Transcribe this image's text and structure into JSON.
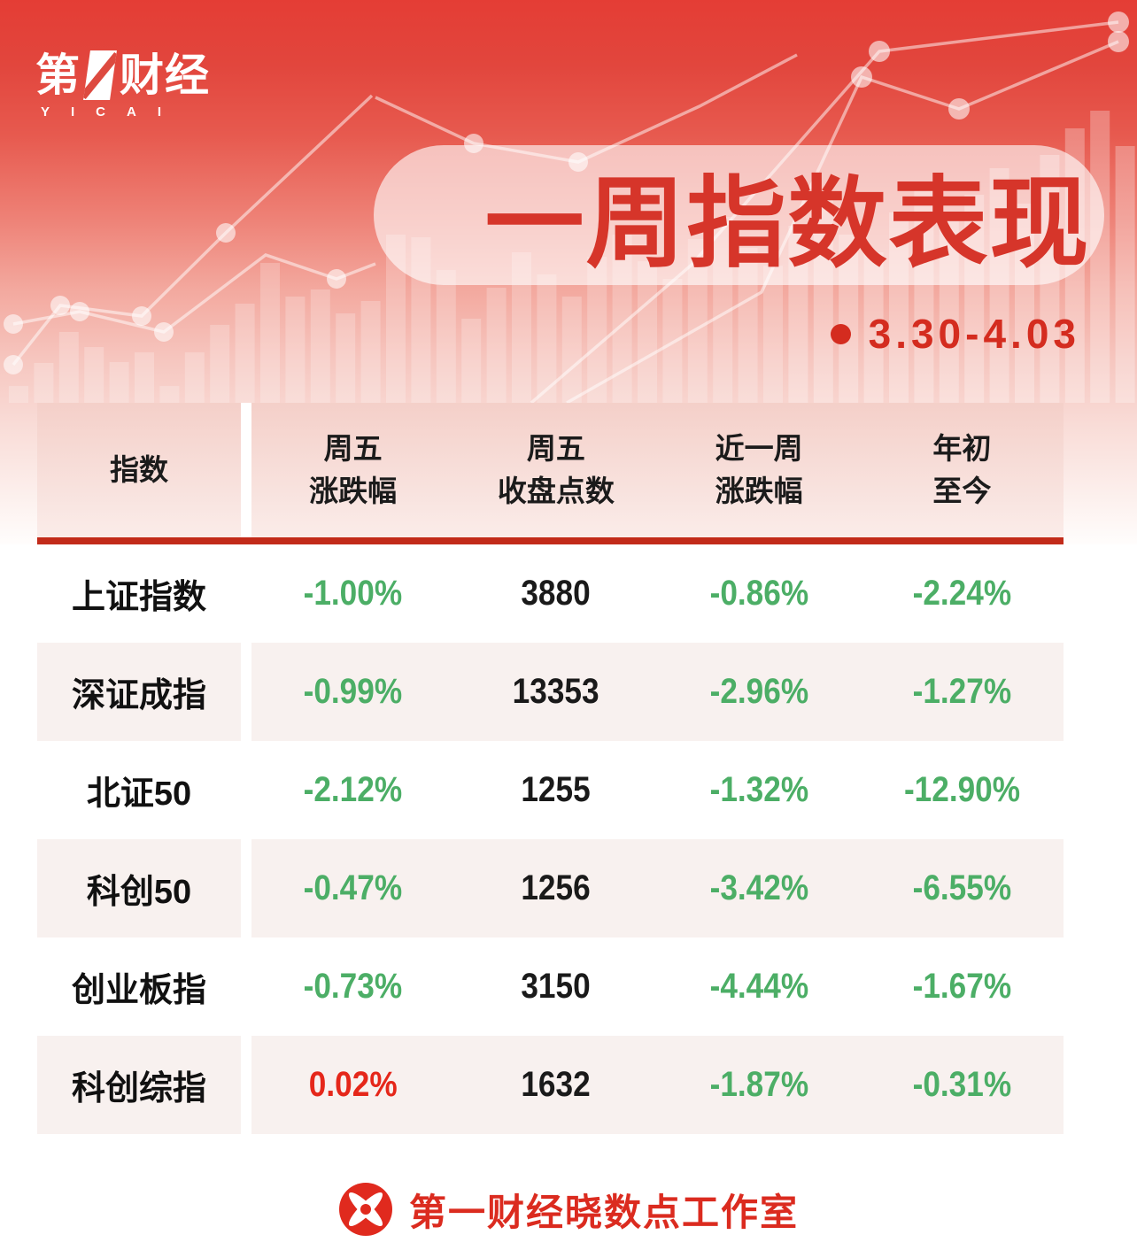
{
  "brand": {
    "logo_cn_left": "第",
    "logo_number": "1",
    "logo_cn_right": "财经",
    "logo_en": "YICAI"
  },
  "title": {
    "text": "一周指数表现",
    "date_range": "3.30-4.03"
  },
  "table": {
    "headers": {
      "index": "指数",
      "friday_change": "周五\n涨跌幅",
      "friday_close": "周五\n收盘点数",
      "week_change": "近一周\n涨跌幅",
      "ytd": "年初\n至今"
    },
    "rows": [
      {
        "name": "上证指数",
        "friday_change": {
          "text": "-1.00%",
          "tone": "down"
        },
        "friday_close": {
          "text": "3880",
          "tone": "neutral"
        },
        "week_change": {
          "text": "-0.86%",
          "tone": "down"
        },
        "ytd": {
          "text": "-2.24%",
          "tone": "down"
        }
      },
      {
        "name": "深证成指",
        "friday_change": {
          "text": "-0.99%",
          "tone": "down"
        },
        "friday_close": {
          "text": "13353",
          "tone": "neutral"
        },
        "week_change": {
          "text": "-2.96%",
          "tone": "down"
        },
        "ytd": {
          "text": "-1.27%",
          "tone": "down"
        }
      },
      {
        "name": "北证50",
        "friday_change": {
          "text": "-2.12%",
          "tone": "down"
        },
        "friday_close": {
          "text": "1255",
          "tone": "neutral"
        },
        "week_change": {
          "text": "-1.32%",
          "tone": "down"
        },
        "ytd": {
          "text": "-12.90%",
          "tone": "down"
        }
      },
      {
        "name": "科创50",
        "friday_change": {
          "text": "-0.47%",
          "tone": "down"
        },
        "friday_close": {
          "text": "1256",
          "tone": "neutral"
        },
        "week_change": {
          "text": "-3.42%",
          "tone": "down"
        },
        "ytd": {
          "text": "-6.55%",
          "tone": "down"
        }
      },
      {
        "name": "创业板指",
        "friday_change": {
          "text": "-0.73%",
          "tone": "down"
        },
        "friday_close": {
          "text": "3150",
          "tone": "neutral"
        },
        "week_change": {
          "text": "-4.44%",
          "tone": "down"
        },
        "ytd": {
          "text": "-1.67%",
          "tone": "down"
        }
      },
      {
        "name": "科创综指",
        "friday_change": {
          "text": "0.02%",
          "tone": "up"
        },
        "friday_close": {
          "text": "1632",
          "tone": "neutral"
        },
        "week_change": {
          "text": "-1.87%",
          "tone": "down"
        },
        "ytd": {
          "text": "-0.31%",
          "tone": "down"
        }
      }
    ]
  },
  "footer": {
    "credit": "第一财经晓数点工作室"
  },
  "colors": {
    "banner_red": "#E43D35",
    "title_red": "#D6352A",
    "separator_red": "#C22B1A",
    "value_down_green": "#4CAE66",
    "value_up_red": "#E5271A",
    "row_alt_pink": "#F8F1EF"
  },
  "chart_data": {
    "type": "table",
    "title": "一周指数表现",
    "subtitle": "3.30-4.03",
    "columns": [
      "指数",
      "周五涨跌幅",
      "周五收盘点数",
      "近一周涨跌幅",
      "年初至今"
    ],
    "rows": [
      [
        "上证指数",
        "-1.00%",
        3880,
        "-0.86%",
        "-2.24%"
      ],
      [
        "深证成指",
        "-0.99%",
        13353,
        "-2.96%",
        "-1.27%"
      ],
      [
        "北证50",
        "-2.12%",
        1255,
        "-1.32%",
        "-12.90%"
      ],
      [
        "科创50",
        "-0.47%",
        1256,
        "-3.42%",
        "-6.55%"
      ],
      [
        "创业板指",
        "-0.73%",
        3150,
        "-4.44%",
        "-1.67%"
      ],
      [
        "科创综指",
        "0.02%",
        1632,
        "-1.87%",
        "-0.31%"
      ]
    ]
  }
}
